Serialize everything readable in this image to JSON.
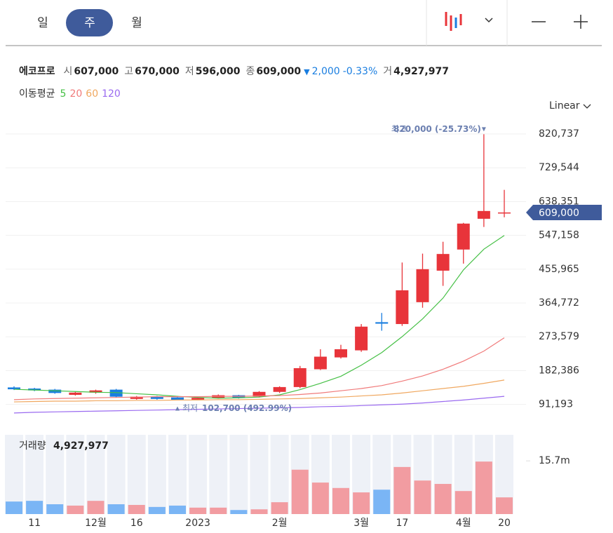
{
  "header": {
    "tabs": [
      "일",
      "주",
      "월"
    ],
    "active_tab": 1
  },
  "info": {
    "name": "에코프로",
    "open_label": "시",
    "open": "607,000",
    "high_label": "고",
    "high": "670,000",
    "low_label": "저",
    "low": "596,000",
    "close_label": "종",
    "close": "609,000",
    "change": "2,000",
    "change_pct": "-0.33%",
    "volume_label": "거",
    "volume": "4,927,977"
  },
  "scale_mode": "Linear",
  "chart_data": [
    {
      "type": "candlestick",
      "legend_title": "이동평균",
      "categories": [
        null,
        "11",
        null,
        null,
        "12월",
        null,
        "16",
        null,
        null,
        "2023",
        null,
        null,
        null,
        "2월",
        null,
        null,
        null,
        "3월",
        null,
        "17",
        null,
        null,
        "4월",
        null,
        "20"
      ],
      "open": [
        137000,
        134000,
        131000,
        117000,
        123000,
        131000,
        106000,
        112000,
        110000,
        103000,
        108000,
        116000,
        112000,
        125000,
        138000,
        186000,
        218000,
        237000,
        313000,
        308000,
        367000,
        452000,
        509000,
        592000,
        607000
      ],
      "high": [
        140000,
        136000,
        133000,
        125000,
        131000,
        133000,
        114000,
        114000,
        111000,
        110000,
        118000,
        117000,
        127000,
        140000,
        195000,
        240000,
        252000,
        308000,
        338000,
        474000,
        498000,
        530000,
        581000,
        820000,
        670000
      ],
      "low": [
        130000,
        127000,
        120000,
        115000,
        120000,
        110000,
        104000,
        104000,
        102700,
        103000,
        107000,
        107000,
        110000,
        122000,
        135000,
        184000,
        215000,
        233000,
        290000,
        303000,
        352000,
        411000,
        471000,
        570000,
        596000
      ],
      "close": [
        132000,
        129000,
        122000,
        123000,
        129000,
        112000,
        112000,
        106000,
        103000,
        109000,
        116000,
        109000,
        125000,
        138000,
        189000,
        220000,
        240000,
        301000,
        309000,
        399000,
        456000,
        497000,
        579000,
        613000,
        609000
      ],
      "up_color": "#e8343a",
      "down_color": "#1a7ee0",
      "series": [
        {
          "name": "5",
          "color": "#46c046",
          "values": [
            132000,
            130000,
            128000,
            126000,
            124000,
            123000,
            120000,
            117000,
            113000,
            110000,
            108000,
            109000,
            111000,
            117000,
            131000,
            148000,
            167000,
            197000,
            231000,
            274000,
            322000,
            378000,
            454000,
            510000,
            547000
          ]
        },
        {
          "name": "20",
          "color": "#f07a7a",
          "values": [
            104000,
            106000,
            107000,
            108000,
            109000,
            110000,
            111000,
            112000,
            112000,
            112000,
            113000,
            113000,
            114000,
            115000,
            118000,
            122000,
            128000,
            134000,
            142000,
            154000,
            168000,
            186000,
            208000,
            235000,
            271000
          ]
        },
        {
          "name": "60",
          "color": "#f0a860",
          "values": [
            98000,
            99000,
            100000,
            100000,
            101000,
            101000,
            102000,
            102000,
            103000,
            103000,
            104000,
            104000,
            105000,
            106000,
            107000,
            109000,
            111000,
            114000,
            117000,
            122000,
            128000,
            134000,
            140000,
            148000,
            157000
          ]
        },
        {
          "name": "120",
          "color": "#9a6af0",
          "values": [
            68000,
            70000,
            71000,
            72000,
            73000,
            74000,
            75000,
            76000,
            77000,
            78000,
            79000,
            80000,
            81000,
            82000,
            83000,
            85000,
            86000,
            88000,
            90000,
            92000,
            95000,
            99000,
            103000,
            108000,
            113000
          ]
        }
      ],
      "ylim": [
        47000,
        870000
      ],
      "yticks": [
        {
          "value": 91193,
          "label": "91,193"
        },
        {
          "value": 182386,
          "label": "182,386"
        },
        {
          "value": 273579,
          "label": "273,579"
        },
        {
          "value": 364772,
          "label": "364,772"
        },
        {
          "value": 455965,
          "label": "455,965"
        },
        {
          "value": 547158,
          "label": "547,158"
        },
        {
          "value": 638351,
          "label": "638,351"
        },
        {
          "value": 729544,
          "label": "729,544"
        },
        {
          "value": 820737,
          "label": "820,737"
        }
      ],
      "grid": true,
      "annotations": {
        "high": {
          "label": "최고",
          "text": "820,000 (-25.73%)"
        },
        "low": {
          "label": "최저",
          "text": "102,700 (492.99%)"
        }
      },
      "last_price_label": "609,000"
    },
    {
      "type": "bar",
      "title": "거래량",
      "value_label": "4,927,977",
      "values": [
        3700000,
        3900000,
        2900000,
        2500000,
        3900000,
        2900000,
        2700000,
        2100000,
        2500000,
        1900000,
        1900000,
        1200000,
        1400000,
        3500000,
        13100000,
        9300000,
        7700000,
        6400000,
        7200000,
        13900000,
        9900000,
        8900000,
        6800000,
        15500000,
        4927977
      ],
      "up_color": "#f29ca1",
      "down_color": "#7ab5f5",
      "ylim": [
        0,
        23400000
      ],
      "yticks": [
        {
          "value": 15700000,
          "label": "15.7m"
        }
      ]
    }
  ]
}
